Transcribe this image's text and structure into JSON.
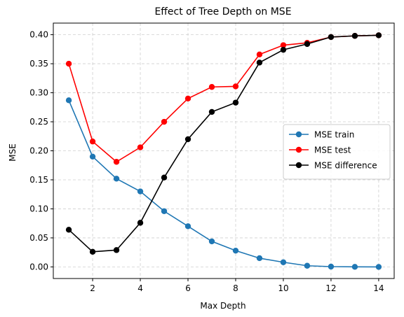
{
  "chart_data": {
    "type": "line",
    "title": "Effect of Tree Depth on MSE",
    "xlabel": "Max Depth",
    "ylabel": "MSE",
    "xlim": [
      0.35,
      14.65
    ],
    "ylim": [
      -0.02,
      0.42
    ],
    "xticks": [
      2,
      4,
      6,
      8,
      10,
      12,
      14
    ],
    "xtick_labels": [
      "2",
      "4",
      "6",
      "8",
      "10",
      "12",
      "14"
    ],
    "yticks": [
      0.0,
      0.05,
      0.1,
      0.15,
      0.2,
      0.25,
      0.3,
      0.35,
      0.4
    ],
    "ytick_labels": [
      "0.00",
      "0.05",
      "0.10",
      "0.15",
      "0.20",
      "0.25",
      "0.30",
      "0.35",
      "0.40"
    ],
    "grid": true,
    "legend_position": "center-right",
    "x": [
      1,
      2,
      3,
      4,
      5,
      6,
      7,
      8,
      9,
      10,
      11,
      12,
      13,
      14
    ],
    "series": [
      {
        "name": "MSE train",
        "color": "#1f77b4",
        "marker": "circle",
        "values": [
          0.287,
          0.19,
          0.152,
          0.13,
          0.096,
          0.07,
          0.044,
          0.028,
          0.015,
          0.008,
          0.002,
          0.0005,
          0.0001,
          0.0
        ]
      },
      {
        "name": "MSE test",
        "color": "#ff0000",
        "marker": "circle",
        "values": [
          0.35,
          0.216,
          0.181,
          0.206,
          0.25,
          0.29,
          0.31,
          0.311,
          0.366,
          0.382,
          0.386,
          0.396,
          0.398,
          0.399
        ]
      },
      {
        "name": "MSE difference",
        "color": "#000000",
        "marker": "circle",
        "values": [
          0.064,
          0.026,
          0.029,
          0.076,
          0.154,
          0.22,
          0.267,
          0.283,
          0.352,
          0.374,
          0.384,
          0.396,
          0.398,
          0.399
        ]
      }
    ]
  }
}
